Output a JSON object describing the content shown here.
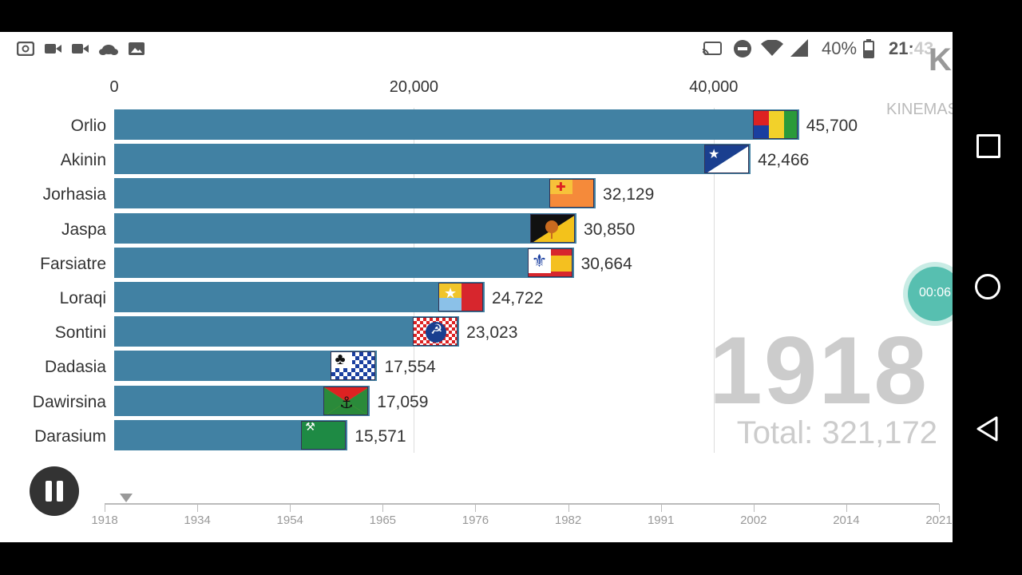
{
  "status_bar": {
    "battery": "40%",
    "time": "21:43",
    "left_icons": [
      "screen-record-icon",
      "video-camera-icon",
      "video-camera-icon",
      "cloud-icon",
      "image-icon"
    ],
    "right_icons": [
      "cast-icon",
      "do-not-disturb-icon",
      "wifi-icon",
      "signal-icon",
      "battery-icon"
    ]
  },
  "watermark": {
    "text": "KINEMASTER"
  },
  "recording": {
    "timer": "00:06"
  },
  "chart_data": {
    "type": "bar",
    "orientation": "horizontal",
    "year": "1918",
    "total_label": "Total: 321,172",
    "xlim": [
      0,
      45700
    ],
    "xticks": [
      "0",
      "20,000",
      "40,000"
    ],
    "xtick_values": [
      0,
      20000,
      40000
    ],
    "grid": true,
    "bar_color": "#4181a3",
    "categories": [
      "Orlio",
      "Akinin",
      "Jorhasia",
      "Jaspa",
      "Farsiatre",
      "Loraqi",
      "Sontini",
      "Dadasia",
      "Dawirsina",
      "Darasium"
    ],
    "values": [
      45700,
      42466,
      32129,
      30850,
      30664,
      24722,
      23023,
      17554,
      17059,
      15571
    ],
    "value_labels": [
      "45,700",
      "42,466",
      "32,129",
      "30,850",
      "30,664",
      "24,722",
      "23,023",
      "17,554",
      "17,059",
      "15,571"
    ],
    "flags": [
      "orlio-flag-icon",
      "akinin-flag-icon",
      "jorhasia-flag-icon",
      "jaspa-flag-icon",
      "farsiatre-flag-icon",
      "loraqi-flag-icon",
      "sontini-flag-icon",
      "dadasia-flag-icon",
      "dawirsina-flag-icon",
      "darasium-flag-icon"
    ]
  },
  "timeline": {
    "labels": [
      "1918",
      "1934",
      "1954",
      "1965",
      "1976",
      "1982",
      "1991",
      "2002",
      "2014",
      "2021"
    ],
    "play_state": "pause"
  }
}
